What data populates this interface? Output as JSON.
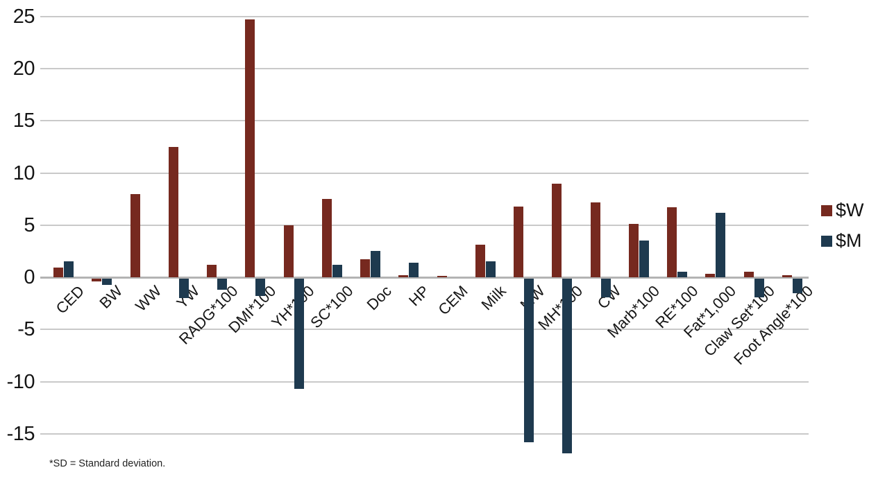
{
  "chart_data": {
    "type": "bar",
    "title": "",
    "xlabel": "",
    "ylabel": "",
    "categories": [
      "CED",
      "BW",
      "WW",
      "YW",
      "RADG*100",
      "DMI*100",
      "YH*100",
      "SC*100",
      "Doc",
      "HP",
      "CEM",
      "Milk",
      "MW",
      "MH*100",
      "CW",
      "Marb*100",
      "RE*100",
      "Fat*1,000",
      "Claw Set*100",
      "Foot Angle*100"
    ],
    "series": [
      {
        "name": "$W",
        "color": "#76291f",
        "values": [
          0.9,
          -0.4,
          8.0,
          12.5,
          1.2,
          24.7,
          5.0,
          7.5,
          1.7,
          0.2,
          0.1,
          3.1,
          6.8,
          9.0,
          7.2,
          5.1,
          6.7,
          0.3,
          0.5,
          0.2
        ]
      },
      {
        "name": "$M",
        "color": "#1e3a4f",
        "values": [
          1.5,
          -0.7,
          0,
          -2.0,
          -1.2,
          -1.8,
          -10.7,
          1.2,
          2.5,
          1.4,
          0,
          1.5,
          -15.8,
          -16.9,
          -1.9,
          3.5,
          0.5,
          6.2,
          -1.9,
          -1.5
        ]
      }
    ],
    "yticks": [
      25,
      20,
      15,
      10,
      5,
      0,
      -5,
      -10,
      -15
    ],
    "ylim": [
      -17.5,
      25
    ],
    "grid": true,
    "legend_position": "right",
    "footnote": "*SD = Standard deviation."
  },
  "legend": {
    "w_label": "$W",
    "m_label": "$M"
  },
  "colors": {
    "w_series": "#76291f",
    "m_series": "#1e3a4f",
    "gridline": "#c9c9c9",
    "zero_line": "#b3b3b3"
  }
}
